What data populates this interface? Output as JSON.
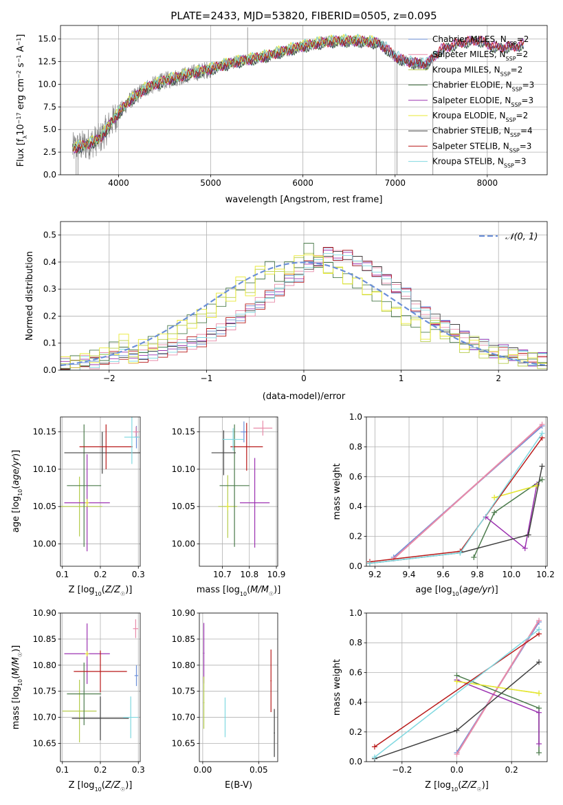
{
  "figure": {
    "title": "PLATE=2433, MJD=53820, FIBERID=0505, z=0.095"
  },
  "series_names": [
    "Chabrier MILES",
    "Salpeter MILES",
    "Kroupa MILES",
    "Chabrier ELODIE",
    "Salpeter ELODIE",
    "Kroupa ELODIE",
    "Chabrier STELIB",
    "Salpeter STELIB",
    "Kroupa STELIB"
  ],
  "legend_nssp": [
    2,
    2,
    2,
    3,
    3,
    2,
    4,
    3,
    3
  ],
  "colors": [
    "#6b8fd8",
    "#e88aa8",
    "#b5cc4a",
    "#4a7a4a",
    "#9b30b0",
    "#e8e830",
    "#404040",
    "#b81818",
    "#7fd8e0"
  ],
  "chart_data": [
    {
      "id": "spectrum",
      "type": "line",
      "title": "PLATE=2433, MJD=53820, FIBERID=0505, z=0.095",
      "xlabel": "wavelength [Angstrom, rest frame]",
      "ylabel": "Flux [f_λ 10^-17 erg cm^-2 s^-1 A^-1]",
      "xlim": [
        3370,
        8650
      ],
      "ylim": [
        0,
        16.5
      ],
      "xticks": [
        4000,
        5000,
        6000,
        7000,
        8000
      ],
      "yticks": [
        0.0,
        2.5,
        5.0,
        7.5,
        10.0,
        12.5,
        15.0
      ],
      "ytick_labels": [
        "0.0",
        "2.5",
        "5.0",
        "7.5",
        "10.0",
        "12.5",
        "15.0"
      ],
      "legend": "top-right",
      "grid": true,
      "data_wavelength_range": [
        3500,
        7410
      ],
      "model_wavelength_range": [
        3500,
        8400
      ],
      "continuum_points": [
        [
          3500,
          2.9
        ],
        [
          3650,
          3.3
        ],
        [
          3800,
          4.0
        ],
        [
          3950,
          6.2
        ],
        [
          4100,
          8.0
        ],
        [
          4300,
          9.6
        ],
        [
          4500,
          10.4
        ],
        [
          4800,
          11.2
        ],
        [
          5000,
          11.7
        ],
        [
          5200,
          12.3
        ],
        [
          5400,
          12.7
        ],
        [
          5600,
          13.1
        ],
        [
          5800,
          13.7
        ],
        [
          6000,
          14.2
        ],
        [
          6200,
          14.6
        ],
        [
          6400,
          14.8
        ],
        [
          6600,
          14.8
        ],
        [
          6800,
          14.6
        ],
        [
          6900,
          14.0
        ],
        [
          7000,
          13.1
        ],
        [
          7100,
          12.6
        ],
        [
          7200,
          12.4
        ],
        [
          7350,
          12.3
        ],
        [
          7500,
          13.9
        ],
        [
          7700,
          14.6
        ],
        [
          7900,
          14.9
        ],
        [
          8100,
          14.1
        ],
        [
          8300,
          14.2
        ],
        [
          8400,
          14.5
        ]
      ]
    },
    {
      "id": "residuals",
      "type": "line",
      "xlabel": "(data-model)/error",
      "ylabel": "Normed distribution",
      "xlim": [
        -2.5,
        2.5
      ],
      "ylim": [
        0,
        0.55
      ],
      "xticks": [
        -2,
        -1,
        0,
        1,
        2
      ],
      "xtick_labels": [
        "−2",
        "−1",
        "0",
        "1",
        "2"
      ],
      "yticks": [
        0.0,
        0.1,
        0.2,
        0.3,
        0.4,
        0.5
      ],
      "ytick_labels": [
        "0.0",
        "0.1",
        "0.2",
        "0.3",
        "0.4",
        "0.5"
      ],
      "legend": "top-right",
      "legend_label": "𝒩(0, 1)",
      "grid": true,
      "bin_edges_range": [
        -2.5,
        2.5
      ],
      "bin_width": 0.1,
      "hist_group_a": [
        0.03,
        0.03,
        0.04,
        0.05,
        0.06,
        0.08,
        0.11,
        0.05,
        0.09,
        0.1,
        0.11,
        0.14,
        0.16,
        0.18,
        0.2,
        0.22,
        0.26,
        0.28,
        0.32,
        0.3,
        0.36,
        0.38,
        0.35,
        0.38,
        0.4,
        0.45,
        0.4,
        0.38,
        0.36,
        0.34,
        0.32,
        0.3,
        0.27,
        0.24,
        0.21,
        0.19,
        0.17,
        0.13,
        0.16,
        0.14,
        0.11,
        0.09,
        0.1,
        0.07,
        0.06,
        0.05,
        0.05,
        0.04,
        0.04,
        0.03
      ],
      "hist_group_b": [
        0.02,
        0.02,
        0.03,
        0.03,
        0.04,
        0.05,
        0.06,
        0.05,
        0.05,
        0.06,
        0.07,
        0.08,
        0.09,
        0.1,
        0.11,
        0.13,
        0.15,
        0.17,
        0.2,
        0.22,
        0.25,
        0.27,
        0.3,
        0.33,
        0.35,
        0.38,
        0.41,
        0.43,
        0.43,
        0.42,
        0.41,
        0.38,
        0.37,
        0.33,
        0.31,
        0.28,
        0.24,
        0.21,
        0.19,
        0.16,
        0.15,
        0.12,
        0.1,
        0.09,
        0.07,
        0.07,
        0.06,
        0.05,
        0.04,
        0.04
      ],
      "gaussian": {
        "mean": 0,
        "sigma": 1
      }
    },
    {
      "id": "age-vs-Z",
      "type": "scatter",
      "xlabel": "Z [log10(Z/Z☉)]",
      "ylabel": "age  [log10(age/yr)]",
      "xlim": [
        0.095,
        0.305
      ],
      "ylim": [
        9.97,
        10.17
      ],
      "xticks": [
        0.1,
        0.2,
        0.3
      ],
      "xtick_labels": [
        "0.1",
        "0.2",
        "0.3"
      ],
      "yticks": [
        10.0,
        10.05,
        10.1,
        10.15
      ],
      "ytick_labels": [
        "10.00",
        "10.05",
        "10.10",
        "10.15"
      ],
      "grid": true,
      "errorbars": [
        {
          "series": 0,
          "x": 0.295,
          "xerr": 0.005,
          "y": 10.143,
          "yerr": 0.015
        },
        {
          "series": 1,
          "x": 0.294,
          "xerr": 0.007,
          "y": 10.15,
          "yerr": 0.007
        },
        {
          "series": 2,
          "x": 0.145,
          "xerr": 0.06,
          "y": 10.05,
          "yerr": 0.04
        },
        {
          "series": 3,
          "x": 0.157,
          "xerr": 0.045,
          "y": 10.078,
          "yerr": 0.082
        },
        {
          "series": 4,
          "x": 0.165,
          "xerr": 0.06,
          "y": 10.055,
          "yerr": 0.065
        },
        {
          "series": 5,
          "x": 0.165,
          "xerr": 0.005,
          "y": 10.055,
          "yerr": 0.005
        },
        {
          "series": 6,
          "x": 0.205,
          "xerr": 0.1,
          "y": 10.122,
          "yerr": 0.028
        },
        {
          "series": 7,
          "x": 0.215,
          "xerr": 0.07,
          "y": 10.13,
          "yerr": 0.03
        },
        {
          "series": 8,
          "x": 0.283,
          "xerr": 0.02,
          "y": 10.143,
          "yerr": 0.036
        }
      ]
    },
    {
      "id": "age-vs-mass",
      "type": "scatter",
      "xlabel": "mass [log10(M/M☉)]",
      "xlim": [
        10.615,
        10.905
      ],
      "ylim": [
        9.97,
        10.17
      ],
      "xticks": [
        10.7,
        10.8,
        10.9
      ],
      "xtick_labels": [
        "10.7",
        "10.8",
        "10.9"
      ],
      "yticks": [
        10.0,
        10.05,
        10.1,
        10.15
      ],
      "ytick_labels": [
        "10.00",
        "10.05",
        "10.10",
        "10.15"
      ],
      "grid": true,
      "errorbars": [
        {
          "series": 0,
          "x": 10.78,
          "xerr": 0.012,
          "y": 10.15,
          "yerr": 0.014
        },
        {
          "series": 1,
          "x": 10.85,
          "xerr": 0.035,
          "y": 10.155,
          "yerr": 0.01
        },
        {
          "series": 2,
          "x": 10.72,
          "xerr": 0.035,
          "y": 10.05,
          "yerr": 0.042
        },
        {
          "series": 3,
          "x": 10.745,
          "xerr": 0.055,
          "y": 10.078,
          "yerr": 0.082
        },
        {
          "series": 4,
          "x": 10.82,
          "xerr": 0.055,
          "y": 10.055,
          "yerr": 0.06
        },
        {
          "series": 5,
          "x": 10.72,
          "xerr": 0.005,
          "y": 10.05,
          "yerr": 0.005
        },
        {
          "series": 6,
          "x": 10.705,
          "xerr": 0.045,
          "y": 10.122,
          "yerr": 0.03
        },
        {
          "series": 7,
          "x": 10.79,
          "xerr": 0.06,
          "y": 10.13,
          "yerr": 0.032
        },
        {
          "series": 8,
          "x": 10.74,
          "xerr": 0.04,
          "y": 10.14,
          "yerr": 0.015
        }
      ]
    },
    {
      "id": "mass-weight-vs-age",
      "type": "line",
      "xlabel": "age  [log10(age/yr)]",
      "ylabel": "mass weight",
      "xlim": [
        9.15,
        10.21
      ],
      "ylim": [
        0,
        1.0
      ],
      "xticks": [
        9.2,
        9.4,
        9.6,
        9.8,
        10.0,
        10.2
      ],
      "xtick_labels": [
        "9.2",
        "9.4",
        "9.6",
        "9.8",
        "10.0",
        "10.2"
      ],
      "yticks": [
        0.0,
        0.2,
        0.4,
        0.6,
        0.8,
        1.0
      ],
      "ytick_labels": [
        "0.0",
        "0.2",
        "0.4",
        "0.6",
        "0.8",
        "1.0"
      ],
      "grid": true,
      "series": [
        {
          "series": 0,
          "x": [
            9.31,
            10.18
          ],
          "y": [
            0.06,
            0.94
          ]
        },
        {
          "series": 1,
          "x": [
            9.31,
            10.18
          ],
          "y": [
            0.05,
            0.95
          ]
        },
        {
          "series": 2,
          "x": [
            9.9,
            10.15
          ],
          "y": [
            0.46,
            0.54
          ]
        },
        {
          "series": 3,
          "x": [
            9.78,
            9.9,
            10.18
          ],
          "y": [
            0.06,
            0.36,
            0.58
          ]
        },
        {
          "series": 4,
          "x": [
            9.85,
            10.08,
            10.15
          ],
          "y": [
            0.33,
            0.12,
            0.55
          ]
        },
        {
          "series": 5,
          "x": [
            9.9,
            10.15
          ],
          "y": [
            0.46,
            0.54
          ]
        },
        {
          "series": 6,
          "x": [
            9.17,
            9.7,
            10.1,
            10.18
          ],
          "y": [
            0.02,
            0.09,
            0.21,
            0.67
          ]
        },
        {
          "series": 7,
          "x": [
            9.17,
            9.7,
            10.18
          ],
          "y": [
            0.03,
            0.1,
            0.86
          ]
        },
        {
          "series": 8,
          "x": [
            9.17,
            9.7,
            10.18
          ],
          "y": [
            0.02,
            0.09,
            0.89
          ]
        }
      ]
    },
    {
      "id": "mass-vs-Z",
      "type": "scatter",
      "xlabel": "Z [log10(Z/Z☉)]",
      "ylabel": "mass [log10(M/M☉)]",
      "xlim": [
        0.095,
        0.305
      ],
      "ylim": [
        10.615,
        10.9
      ],
      "xticks": [
        0.1,
        0.2,
        0.3
      ],
      "xtick_labels": [
        "0.1",
        "0.2",
        "0.3"
      ],
      "yticks": [
        10.65,
        10.7,
        10.75,
        10.8,
        10.85,
        10.9
      ],
      "ytick_labels": [
        "10.65",
        "10.70",
        "10.75",
        "10.80",
        "10.85",
        "10.90"
      ],
      "grid": true,
      "errorbars": [
        {
          "series": 0,
          "x": 0.295,
          "xerr": 0.005,
          "y": 10.78,
          "yerr": 0.02
        },
        {
          "series": 1,
          "x": 0.293,
          "xerr": 0.007,
          "y": 10.87,
          "yerr": 0.018
        },
        {
          "series": 2,
          "x": 0.145,
          "xerr": 0.045,
          "y": 10.712,
          "yerr": 0.06
        },
        {
          "series": 3,
          "x": 0.157,
          "xerr": 0.045,
          "y": 10.745,
          "yerr": 0.06
        },
        {
          "series": 4,
          "x": 0.165,
          "xerr": 0.06,
          "y": 10.822,
          "yerr": 0.058
        },
        {
          "series": 5,
          "x": 0.165,
          "xerr": 0.005,
          "y": 10.822,
          "yerr": 0.005
        },
        {
          "series": 6,
          "x": 0.2,
          "xerr": 0.075,
          "y": 10.698,
          "yerr": 0.042
        },
        {
          "series": 7,
          "x": 0.2,
          "xerr": 0.07,
          "y": 10.788,
          "yerr": 0.04
        },
        {
          "series": 8,
          "x": 0.28,
          "xerr": 0.02,
          "y": 10.7,
          "yerr": 0.04
        }
      ]
    },
    {
      "id": "mass-vs-EBV",
      "type": "scatter",
      "xlabel": "E(B-V)",
      "xlim": [
        -0.003,
        0.067
      ],
      "ylim": [
        10.615,
        10.9
      ],
      "xticks": [
        0.0,
        0.05
      ],
      "xtick_labels": [
        "0.00",
        "0.05"
      ],
      "yticks": [
        10.65,
        10.7,
        10.75,
        10.8,
        10.85,
        10.9
      ],
      "ytick_labels": [
        "10.65",
        "10.70",
        "10.75",
        "10.80",
        "10.85",
        "10.90"
      ],
      "grid": true,
      "errorbars": [
        {
          "series": 4,
          "x": 0.001,
          "xerr": 0.0005,
          "y": 10.823,
          "yerr": 0.058
        },
        {
          "series": 2,
          "x": 0.001,
          "xerr": 0.0005,
          "y": 10.728,
          "yerr": 0.05
        },
        {
          "series": 8,
          "x": 0.02,
          "xerr": 0.0005,
          "y": 10.7,
          "yerr": 0.038
        },
        {
          "series": 7,
          "x": 0.061,
          "xerr": 0.0005,
          "y": 10.77,
          "yerr": 0.06
        },
        {
          "series": 6,
          "x": 0.064,
          "xerr": 0.0005,
          "y": 10.67,
          "yerr": 0.046
        }
      ]
    },
    {
      "id": "mass-weight-vs-Z",
      "type": "line",
      "xlabel": "Z [log10(Z/Z☉)]",
      "ylabel": "mass weight",
      "xlim": [
        -0.33,
        0.33
      ],
      "ylim": [
        0,
        1.0
      ],
      "xticks": [
        -0.2,
        0.0,
        0.2
      ],
      "xtick_labels": [
        "−0.2",
        "0.0",
        "0.2"
      ],
      "yticks": [
        0.0,
        0.2,
        0.4,
        0.6,
        0.8,
        1.0
      ],
      "ytick_labels": [
        "0.0",
        "0.2",
        "0.4",
        "0.6",
        "0.8",
        "1.0"
      ],
      "grid": true,
      "series": [
        {
          "series": 0,
          "x": [
            0.0,
            0.3
          ],
          "y": [
            0.06,
            0.94
          ]
        },
        {
          "series": 1,
          "x": [
            0.0,
            0.3
          ],
          "y": [
            0.05,
            0.95
          ]
        },
        {
          "series": 2,
          "x": [
            0.0,
            0.3
          ],
          "y": [
            0.54,
            0.46
          ]
        },
        {
          "series": 3,
          "x": [
            0.0,
            0.3,
            0.3
          ],
          "y": [
            0.58,
            0.36,
            0.06
          ]
        },
        {
          "series": 4,
          "x": [
            0.0,
            0.3,
            0.3
          ],
          "y": [
            0.55,
            0.33,
            0.12
          ]
        },
        {
          "series": 5,
          "x": [
            0.0,
            0.3
          ],
          "y": [
            0.54,
            0.46
          ]
        },
        {
          "series": 6,
          "x": [
            -0.3,
            0.0,
            0.3
          ],
          "y": [
            0.02,
            0.21,
            0.67
          ]
        },
        {
          "series": 7,
          "x": [
            -0.3,
            0.3
          ],
          "y": [
            0.1,
            0.86
          ]
        },
        {
          "series": 8,
          "x": [
            -0.3,
            0.3
          ],
          "y": [
            0.03,
            0.89
          ]
        }
      ]
    }
  ]
}
